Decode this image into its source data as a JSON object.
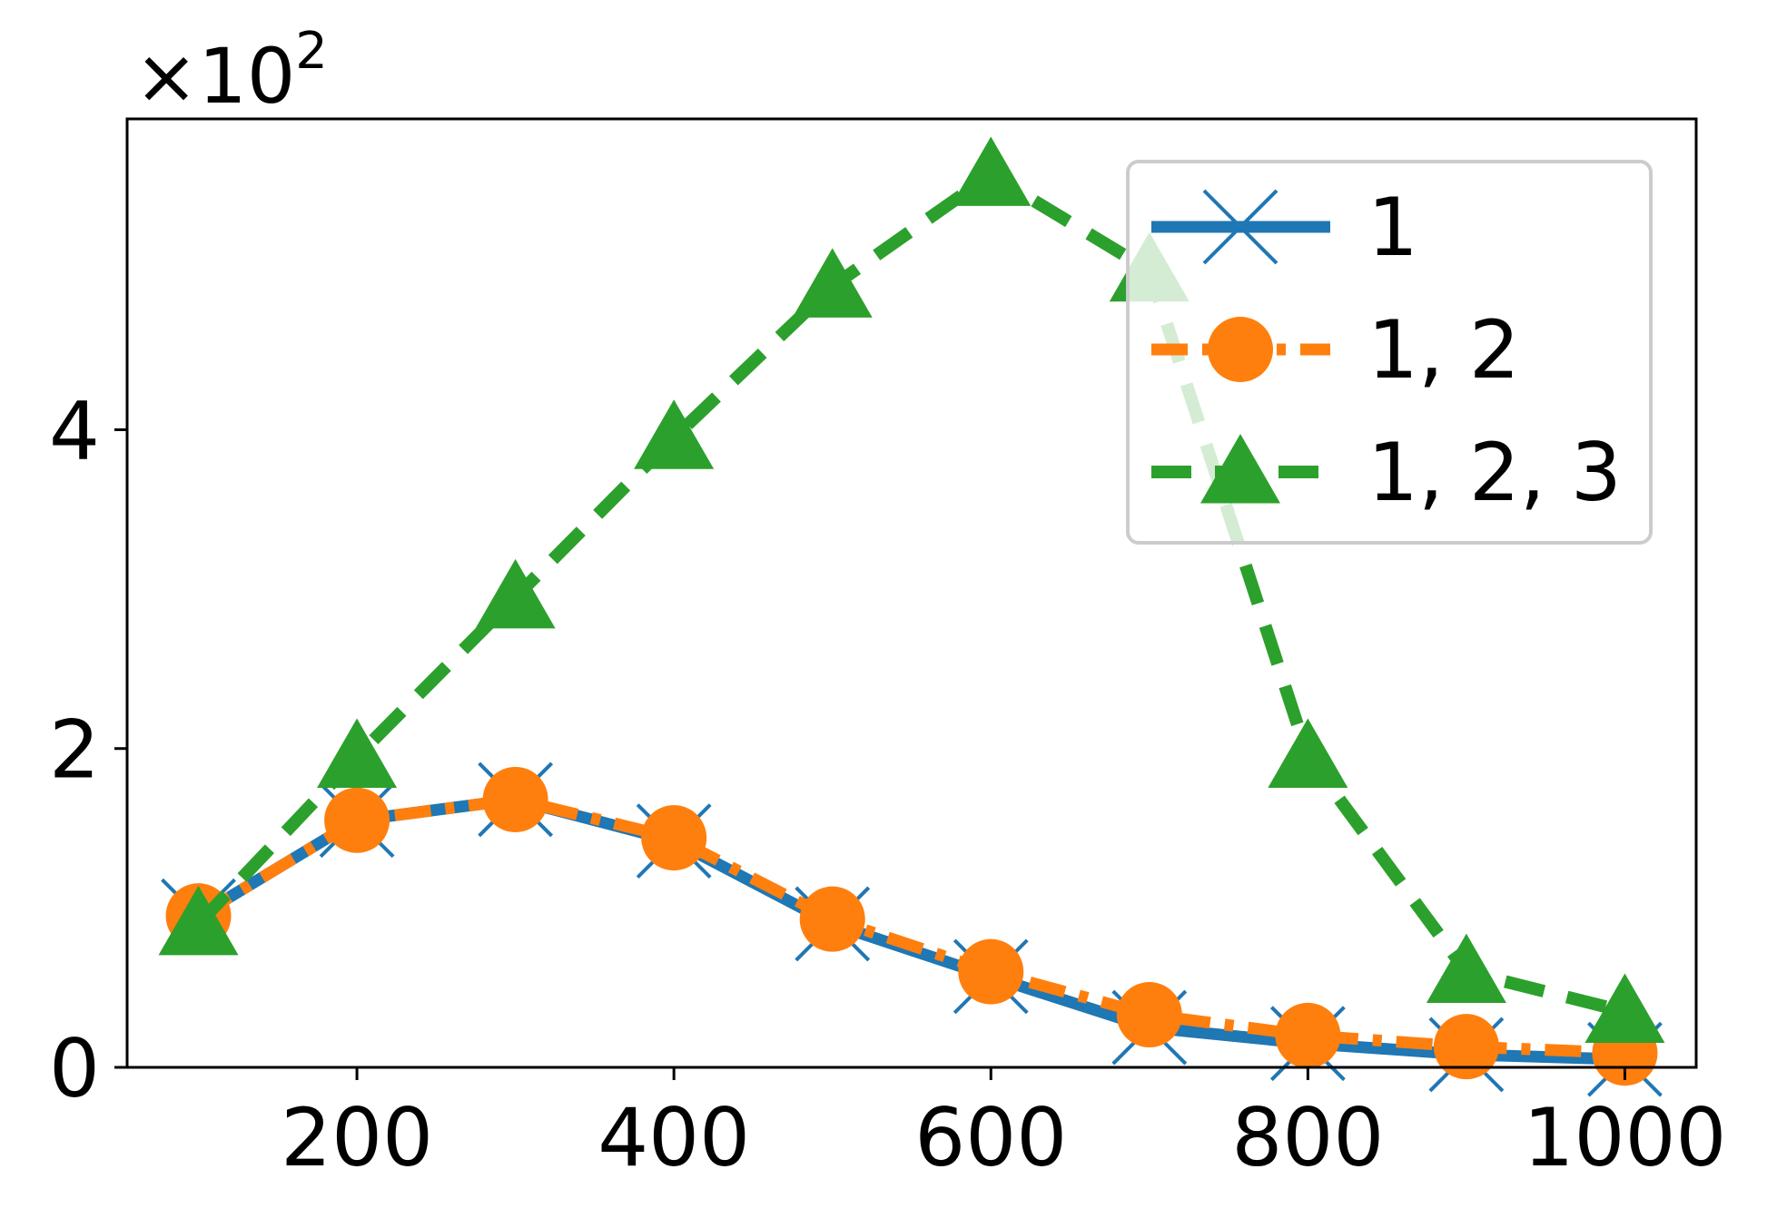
{
  "chart_data": {
    "type": "line",
    "title": "",
    "xlabel": "",
    "ylabel": "",
    "y_multiplier": {
      "base": "×10",
      "exponent": "2"
    },
    "x": [
      100,
      200,
      300,
      400,
      500,
      600,
      700,
      800,
      900,
      1000
    ],
    "xlim": [
      55,
      1045
    ],
    "ylim": [
      0,
      5.95
    ],
    "x_ticks": [
      200,
      400,
      600,
      800,
      1000
    ],
    "x_tick_labels": [
      "200",
      "400",
      "600",
      "800",
      "1000"
    ],
    "y_ticks": [
      0,
      2,
      4
    ],
    "y_tick_labels": [
      "0",
      "2",
      "4"
    ],
    "grid": false,
    "legend_position": "top-right",
    "series": [
      {
        "name": "1",
        "color": "#1f77b4",
        "marker": "x",
        "line_style": "solid",
        "values": [
          0.95,
          1.55,
          1.68,
          1.42,
          0.9,
          0.57,
          0.25,
          0.15,
          0.08,
          0.05
        ]
      },
      {
        "name": "1, 2",
        "color": "#ff7f0e",
        "marker": "circle",
        "line_style": "dashdot",
        "values": [
          0.95,
          1.55,
          1.68,
          1.44,
          0.93,
          0.6,
          0.33,
          0.2,
          0.13,
          0.09
        ]
      },
      {
        "name": "1, 2, 3",
        "color": "#2ca02c",
        "marker": "triangle",
        "line_style": "dashed",
        "values": [
          0.9,
          1.95,
          2.95,
          3.95,
          4.9,
          5.6,
          5.0,
          1.95,
          0.6,
          0.35
        ]
      }
    ]
  }
}
